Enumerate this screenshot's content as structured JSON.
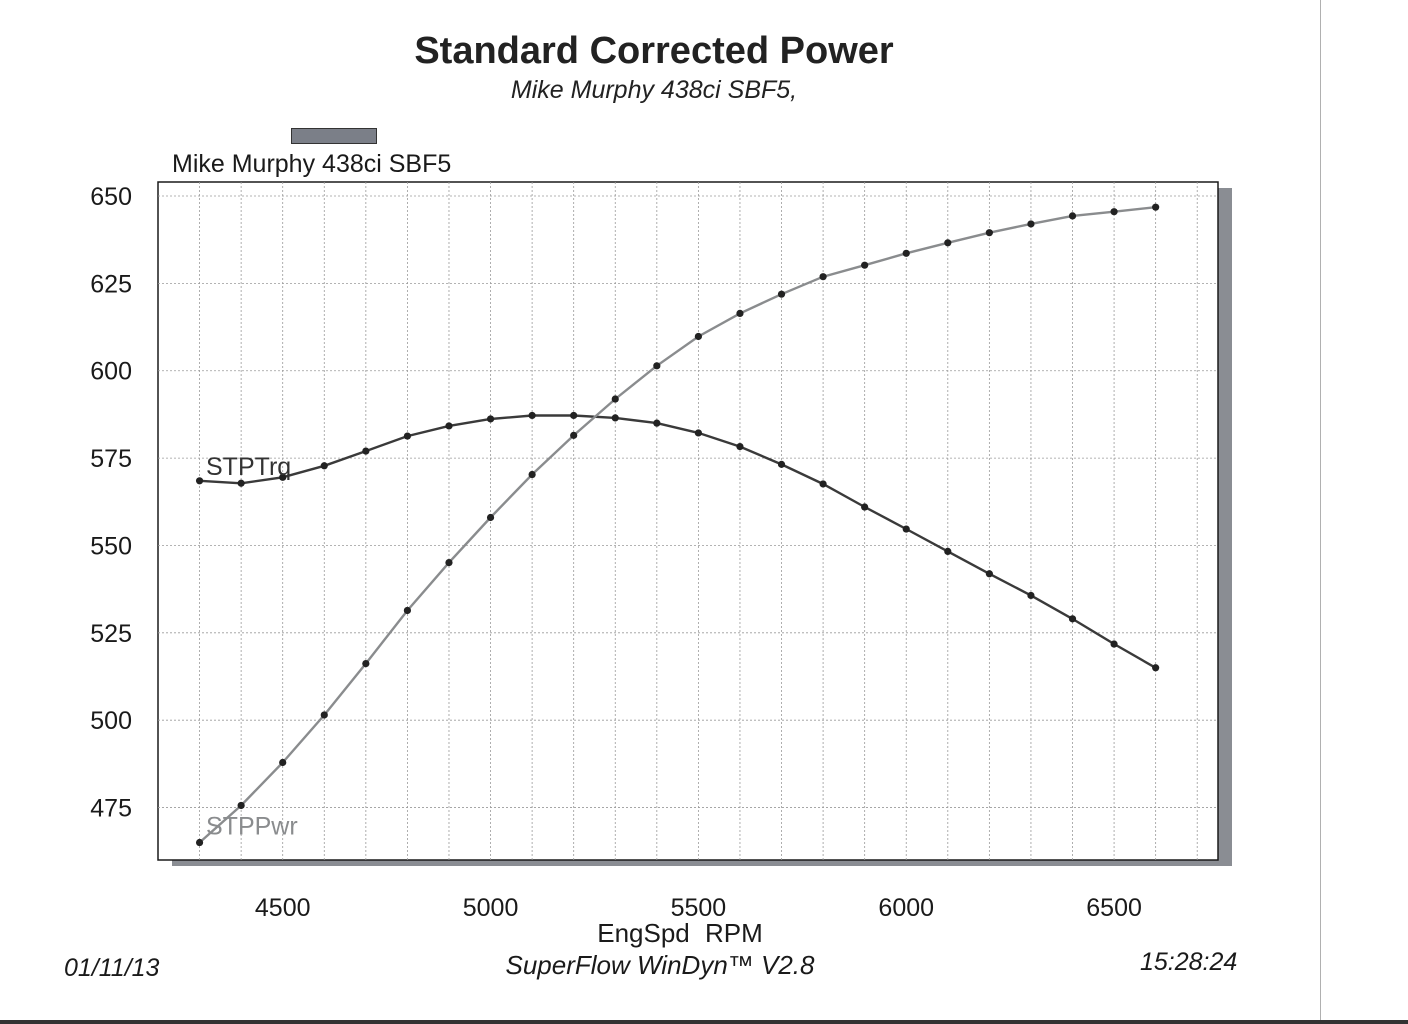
{
  "header": {
    "title": "Standard Corrected Power",
    "subtitle": "Mike Murphy 438ci SBF5,"
  },
  "legend": {
    "label": "Mike Murphy 438ci SBF5",
    "swatch_color": "#7b7f88"
  },
  "footer": {
    "date": "01/11/13",
    "software": "SuperFlow WinDyn™ V2.8",
    "time": "15:28:24"
  },
  "chart_data": {
    "type": "line",
    "xlabel": "EngSpd  RPM",
    "ylabel": "",
    "xlim": [
      4200,
      6750
    ],
    "ylim": [
      460,
      654
    ],
    "x_ticks": [
      4500,
      5000,
      5500,
      6000,
      6500
    ],
    "y_ticks": [
      475,
      500,
      525,
      550,
      575,
      600,
      625,
      650
    ],
    "grid": true,
    "x": [
      4300,
      4400,
      4500,
      4600,
      4700,
      4800,
      4900,
      5000,
      5100,
      5200,
      5300,
      5400,
      5500,
      5600,
      5700,
      5800,
      5900,
      6000,
      6100,
      6200,
      6300,
      6400,
      6500,
      6600
    ],
    "series": [
      {
        "name": "STPTrq",
        "color": "#3a3a3a",
        "values": [
          568.5,
          567.8,
          569.5,
          572.8,
          577.0,
          581.3,
          584.2,
          586.2,
          587.2,
          587.2,
          586.5,
          585.0,
          582.2,
          578.3,
          573.2,
          567.6,
          561.0,
          554.7,
          548.3,
          541.9,
          535.7,
          529.0,
          521.8,
          515.0
        ]
      },
      {
        "name": "STPPwr",
        "color": "#8a8c8e",
        "values": [
          465.0,
          475.6,
          487.9,
          501.5,
          516.2,
          531.4,
          545.1,
          558.0,
          570.3,
          581.5,
          591.9,
          601.4,
          609.8,
          616.4,
          621.9,
          626.9,
          630.2,
          633.6,
          636.6,
          639.5,
          642.0,
          644.3,
          645.5,
          646.8
        ]
      }
    ]
  }
}
